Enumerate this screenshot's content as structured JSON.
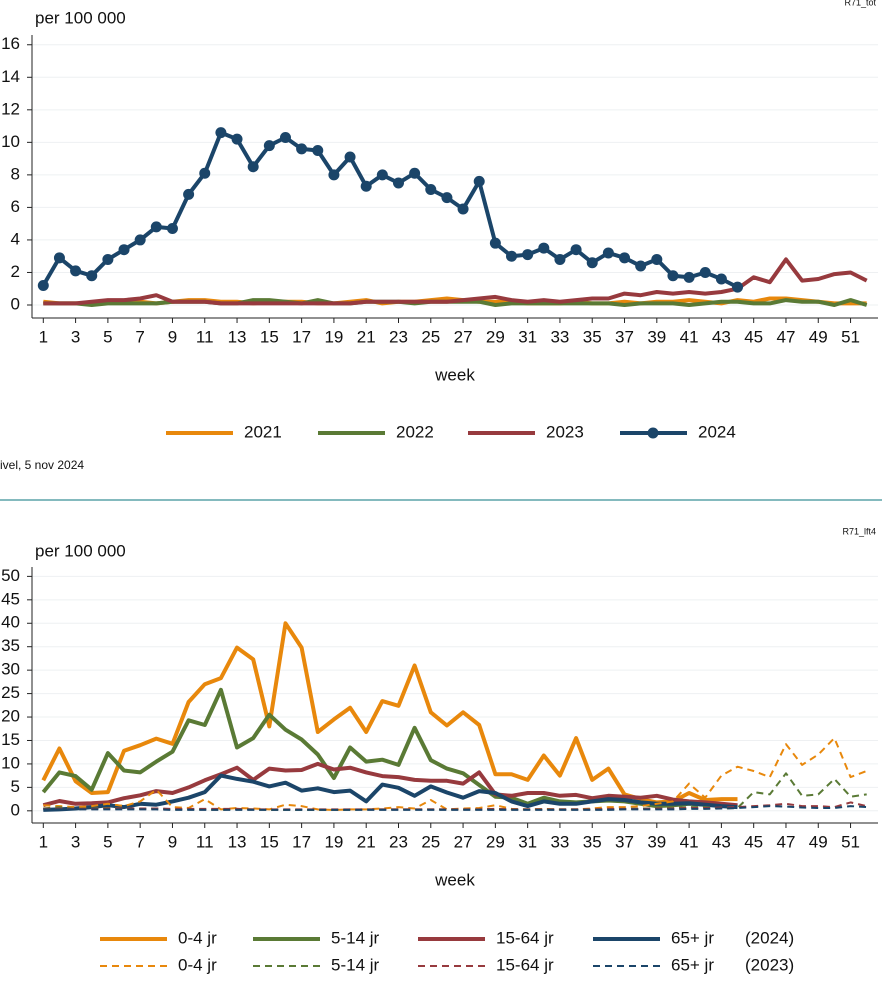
{
  "chart_data": [
    {
      "type": "line",
      "tag": "R71_tot",
      "ylabel": "per 100 000",
      "xlabel": "week",
      "note": "ivel, 5 nov 2024",
      "x": [
        1,
        2,
        3,
        4,
        5,
        6,
        7,
        8,
        9,
        10,
        11,
        12,
        13,
        14,
        15,
        16,
        17,
        18,
        19,
        20,
        21,
        22,
        23,
        24,
        25,
        26,
        27,
        28,
        29,
        30,
        31,
        32,
        33,
        34,
        35,
        36,
        37,
        38,
        39,
        40,
        41,
        42,
        43,
        44,
        45,
        46,
        47,
        48,
        49,
        50,
        51,
        52
      ],
      "xlim": [
        0.3,
        52.7
      ],
      "xticks": [
        1,
        3,
        5,
        7,
        9,
        11,
        13,
        15,
        17,
        19,
        21,
        23,
        25,
        27,
        29,
        31,
        33,
        35,
        37,
        39,
        41,
        43,
        45,
        47,
        49,
        51
      ],
      "ylim": [
        -0.8,
        16.6
      ],
      "yticks": [
        0,
        2,
        4,
        6,
        8,
        10,
        12,
        14,
        16
      ],
      "grid": true,
      "series": [
        {
          "name": "2021",
          "color": "#e8880c",
          "values": [
            0.2,
            0.1,
            0.1,
            0.1,
            0.2,
            0.2,
            0.2,
            0.1,
            0.2,
            0.3,
            0.3,
            0.2,
            0.2,
            0.1,
            0.2,
            0.2,
            0.2,
            0.1,
            0.1,
            0.2,
            0.3,
            0.1,
            0.2,
            0.2,
            0.3,
            0.4,
            0.3,
            0.2,
            0.2,
            0.2,
            0.1,
            0.1,
            0.1,
            0.2,
            0.1,
            0.1,
            0.2,
            0.1,
            0.2,
            0.2,
            0.3,
            0.2,
            0.1,
            0.3,
            0.2,
            0.4,
            0.4,
            0.3,
            0.2,
            0.1,
            0.1,
            0.1
          ]
        },
        {
          "name": "2022",
          "color": "#5a7a35",
          "values": [
            0.1,
            0.1,
            0.1,
            0.0,
            0.1,
            0.1,
            0.1,
            0.1,
            0.2,
            0.2,
            0.2,
            0.1,
            0.1,
            0.3,
            0.3,
            0.2,
            0.1,
            0.3,
            0.1,
            0.1,
            0.2,
            0.2,
            0.2,
            0.1,
            0.2,
            0.2,
            0.2,
            0.2,
            0.0,
            0.1,
            0.1,
            0.1,
            0.1,
            0.1,
            0.1,
            0.1,
            0.0,
            0.1,
            0.1,
            0.1,
            0.0,
            0.1,
            0.2,
            0.2,
            0.1,
            0.1,
            0.3,
            0.2,
            0.2,
            0.0,
            0.3,
            0.0
          ]
        },
        {
          "name": "2023",
          "color": "#973a3e",
          "values": [
            0.1,
            0.1,
            0.1,
            0.2,
            0.3,
            0.3,
            0.4,
            0.6,
            0.2,
            0.2,
            0.2,
            0.1,
            0.1,
            0.1,
            0.1,
            0.1,
            0.1,
            0.1,
            0.1,
            0.1,
            0.2,
            0.2,
            0.2,
            0.2,
            0.2,
            0.2,
            0.3,
            0.4,
            0.5,
            0.3,
            0.2,
            0.3,
            0.2,
            0.3,
            0.4,
            0.4,
            0.7,
            0.6,
            0.8,
            0.7,
            0.8,
            0.7,
            0.8,
            1.0,
            1.7,
            1.4,
            2.8,
            1.5,
            1.6,
            1.9,
            2.0,
            1.5
          ]
        },
        {
          "name": "2024",
          "color": "#1b4569",
          "markers": true,
          "values": [
            1.2,
            2.9,
            2.1,
            1.8,
            2.8,
            3.4,
            4.0,
            4.8,
            4.7,
            6.8,
            8.1,
            10.6,
            10.2,
            8.5,
            9.8,
            10.3,
            9.6,
            9.5,
            8.0,
            9.1,
            7.3,
            8.0,
            7.5,
            8.1,
            7.1,
            6.6,
            5.9,
            7.6,
            3.8,
            3.0,
            3.1,
            3.5,
            2.8,
            3.4,
            2.6,
            3.2,
            2.9,
            2.4,
            2.8,
            1.8,
            1.7,
            2.0,
            1.6,
            1.1,
            null,
            null,
            null,
            null,
            null,
            null,
            null,
            null
          ]
        }
      ]
    },
    {
      "type": "line",
      "tag": "R71_lft4",
      "ylabel": "per 100 000",
      "xlabel": "week",
      "x": [
        1,
        2,
        3,
        4,
        5,
        6,
        7,
        8,
        9,
        10,
        11,
        12,
        13,
        14,
        15,
        16,
        17,
        18,
        19,
        20,
        21,
        22,
        23,
        24,
        25,
        26,
        27,
        28,
        29,
        30,
        31,
        32,
        33,
        34,
        35,
        36,
        37,
        38,
        39,
        40,
        41,
        42,
        43,
        44,
        45,
        46,
        47,
        48,
        49,
        50,
        51,
        52
      ],
      "xlim": [
        0.3,
        52.7
      ],
      "xticks": [
        1,
        3,
        5,
        7,
        9,
        11,
        13,
        15,
        17,
        19,
        21,
        23,
        25,
        27,
        29,
        31,
        33,
        35,
        37,
        39,
        41,
        43,
        45,
        47,
        49,
        51
      ],
      "ylim": [
        -2.6,
        52
      ],
      "yticks": [
        0,
        5,
        10,
        15,
        20,
        25,
        30,
        35,
        40,
        45,
        50
      ],
      "grid": true,
      "legend_row_labels": [
        "(2024)",
        "(2023)"
      ],
      "series": [
        {
          "name": "0-4 jr",
          "color": "#e8880c",
          "values": [
            6.5,
            13.3,
            6.3,
            3.8,
            4.0,
            12.8,
            14.0,
            15.4,
            14.3,
            23.2,
            27.0,
            28.3,
            34.8,
            32.3,
            18.0,
            40.0,
            34.8,
            16.8,
            19.5,
            22.0,
            16.8,
            23.4,
            22.4,
            31.0,
            21.0,
            18.2,
            21.0,
            18.3,
            7.8,
            7.8,
            6.6,
            11.8,
            7.5,
            15.5,
            6.6,
            9.0,
            3.5,
            2.5,
            1.8,
            2.0,
            3.8,
            2.3,
            2.5,
            2.5,
            null,
            null,
            null,
            null,
            null,
            null,
            null,
            null
          ]
        },
        {
          "name": "5-14 jr",
          "color": "#5a7a35",
          "values": [
            4.0,
            8.2,
            7.4,
            4.5,
            12.3,
            8.6,
            8.2,
            10.5,
            12.6,
            19.3,
            18.3,
            25.8,
            13.5,
            15.5,
            20.5,
            17.3,
            15.2,
            12.0,
            7.0,
            13.5,
            10.5,
            10.9,
            9.8,
            17.7,
            10.8,
            9.0,
            8.0,
            5.5,
            3.0,
            2.8,
            1.5,
            2.8,
            2.0,
            1.8,
            2.0,
            2.2,
            2.0,
            1.5,
            1.0,
            1.2,
            1.5,
            1.3,
            1.2,
            1.0,
            null,
            null,
            null,
            null,
            null,
            null,
            null,
            null
          ]
        },
        {
          "name": "15-64 jr",
          "color": "#973a3e",
          "values": [
            1.2,
            2.1,
            1.5,
            1.6,
            1.8,
            2.7,
            3.3,
            4.2,
            3.8,
            5.0,
            6.5,
            7.8,
            9.2,
            6.6,
            9.0,
            8.6,
            8.7,
            10.0,
            8.8,
            9.2,
            8.2,
            7.4,
            7.2,
            6.6,
            6.4,
            6.4,
            5.8,
            8.2,
            3.5,
            3.2,
            3.8,
            3.8,
            3.2,
            3.4,
            2.7,
            3.2,
            3.0,
            2.8,
            3.2,
            2.4,
            2.0,
            1.8,
            1.5,
            1.2,
            null,
            null,
            null,
            null,
            null,
            null,
            null,
            null
          ]
        },
        {
          "name": "65+ jr",
          "color": "#1b4569",
          "values": [
            0.2,
            0.3,
            0.5,
            0.8,
            1.2,
            0.8,
            1.5,
            1.3,
            2.0,
            2.8,
            4.0,
            7.5,
            6.8,
            6.2,
            5.2,
            6.0,
            4.3,
            4.8,
            4.0,
            4.3,
            2.0,
            5.6,
            4.9,
            3.2,
            5.2,
            3.9,
            2.8,
            4.2,
            3.8,
            2.0,
            1.0,
            2.0,
            1.5,
            1.5,
            2.0,
            2.5,
            2.3,
            1.8,
            1.5,
            1.5,
            1.6,
            1.3,
            1.0,
            0.8,
            null,
            null,
            null,
            null,
            null,
            null,
            null,
            null
          ]
        },
        {
          "name": "0-4 jr",
          "color": "#e8880c",
          "dashed": true,
          "values": [
            1.2,
            1.0,
            0.8,
            1.0,
            1.5,
            1.0,
            2.0,
            4.5,
            0.8,
            0.6,
            2.5,
            0.3,
            0.6,
            0.5,
            0.3,
            1.3,
            1.0,
            0.3,
            0.2,
            0.3,
            0.3,
            0.5,
            0.8,
            0.5,
            2.3,
            0.3,
            0.5,
            0.6,
            1.2,
            0.4,
            0.3,
            0.4,
            0.3,
            0.3,
            0.5,
            0.8,
            0.8,
            1.0,
            1.5,
            2.0,
            5.8,
            2.8,
            7.5,
            9.4,
            8.5,
            7.2,
            14.2,
            9.8,
            12.0,
            15.5,
            7.2,
            8.5
          ]
        },
        {
          "name": "5-14 jr",
          "color": "#5a7a35",
          "dashed": true,
          "values": [
            0.5,
            0.8,
            0.4,
            0.5,
            0.6,
            0.5,
            0.4,
            0.5,
            0.3,
            0.3,
            0.3,
            0.2,
            0.4,
            0.3,
            0.2,
            0.2,
            0.2,
            0.2,
            0.2,
            0.2,
            0.3,
            0.3,
            0.3,
            0.3,
            0.3,
            0.3,
            0.3,
            0.3,
            0.4,
            0.3,
            0.3,
            0.3,
            0.3,
            0.3,
            0.3,
            0.3,
            0.4,
            0.5,
            0.5,
            0.6,
            0.8,
            0.8,
            0.5,
            0.6,
            4.0,
            3.5,
            8.0,
            3.2,
            3.5,
            6.8,
            3.0,
            3.5
          ]
        },
        {
          "name": "15-64 jr",
          "color": "#973a3e",
          "dashed": true,
          "values": [
            0.4,
            0.5,
            0.4,
            0.4,
            0.5,
            0.5,
            0.5,
            0.5,
            0.4,
            0.4,
            0.4,
            0.4,
            0.4,
            0.3,
            0.3,
            0.3,
            0.3,
            0.3,
            0.3,
            0.3,
            0.3,
            0.3,
            0.3,
            0.3,
            0.3,
            0.3,
            0.3,
            0.3,
            0.4,
            0.3,
            0.3,
            0.3,
            0.3,
            0.3,
            0.3,
            0.4,
            0.4,
            0.4,
            0.5,
            0.5,
            0.6,
            0.6,
            0.7,
            0.8,
            1.0,
            1.2,
            1.5,
            1.0,
            1.0,
            0.8,
            1.8,
            1.0
          ]
        },
        {
          "name": "65+ jr",
          "color": "#1b4569",
          "dashed": true,
          "values": [
            0.3,
            0.3,
            0.3,
            0.3,
            0.3,
            0.3,
            0.3,
            0.3,
            0.2,
            0.2,
            0.2,
            0.2,
            0.2,
            0.2,
            0.2,
            0.2,
            0.2,
            0.2,
            0.2,
            0.2,
            0.2,
            0.2,
            0.2,
            0.2,
            0.2,
            0.2,
            0.2,
            0.2,
            0.2,
            0.2,
            0.2,
            0.2,
            0.2,
            0.2,
            0.2,
            0.2,
            0.3,
            0.3,
            0.3,
            0.3,
            0.4,
            0.4,
            0.5,
            0.6,
            0.8,
            1.0,
            0.9,
            0.7,
            0.6,
            0.6,
            1.0,
            0.8
          ]
        }
      ]
    }
  ]
}
